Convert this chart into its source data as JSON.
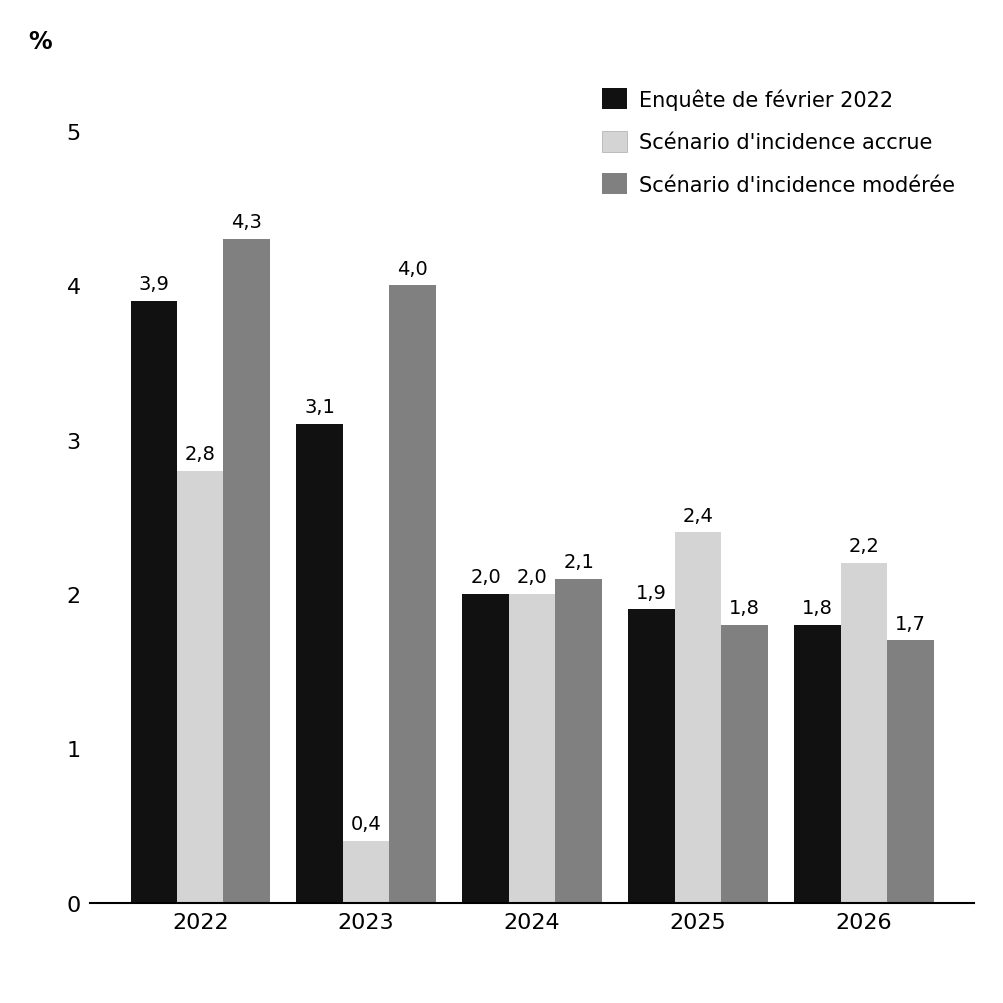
{
  "years": [
    "2022",
    "2023",
    "2024",
    "2025",
    "2026"
  ],
  "series": {
    "enquete": [
      3.9,
      3.1,
      2.0,
      1.9,
      1.8
    ],
    "accrue": [
      2.8,
      0.4,
      2.0,
      2.4,
      2.2
    ],
    "moderee": [
      4.3,
      4.0,
      2.1,
      1.8,
      1.7
    ]
  },
  "colors": {
    "enquete": "#111111",
    "accrue": "#d4d4d4",
    "moderee": "#808080"
  },
  "legend_labels": [
    "Enquête de février 2022",
    "Scénario d'incidence accrue",
    "Scénario d'incidence modérée"
  ],
  "ylabel": "%",
  "yticks": [
    0,
    1,
    2,
    3,
    4,
    5
  ],
  "ylim": [
    0,
    5.4
  ],
  "bar_width": 0.28,
  "label_fontsize": 14,
  "tick_fontsize": 16,
  "legend_fontsize": 15,
  "ylabel_fontsize": 17
}
